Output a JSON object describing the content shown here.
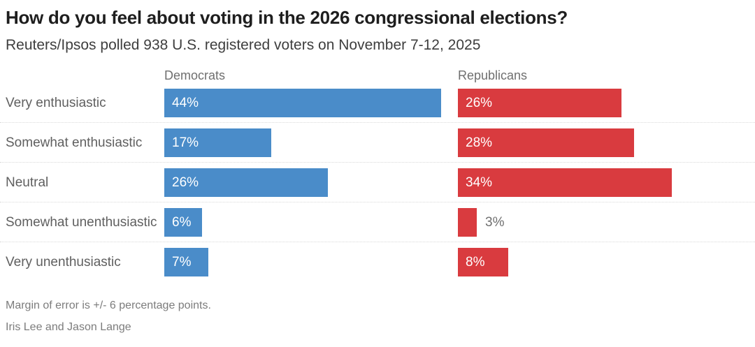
{
  "chart_data": {
    "type": "bar",
    "orientation": "horizontal",
    "title": "How do you feel about voting in the 2026 congressional elections?",
    "subtitle": "Reuters/Ipsos polled 938 U.S. registered voters on November 7-12, 2025",
    "categories": [
      "Very enthusiastic",
      "Somewhat enthusiastic",
      "Neutral",
      "Somewhat unenthusiastic",
      "Very unenthusiastic"
    ],
    "series": [
      {
        "name": "Democrats",
        "color": "#4a8cc9",
        "values": [
          44,
          17,
          26,
          6,
          7
        ],
        "labels": [
          "44%",
          "17%",
          "26%",
          "6%",
          "7%"
        ]
      },
      {
        "name": "Republicans",
        "color": "#d93b3f",
        "values": [
          26,
          28,
          34,
          3,
          8
        ],
        "labels": [
          "26%",
          "28%",
          "34%",
          "3%",
          "8%"
        ]
      }
    ],
    "unit": "%",
    "xlim": [
      0,
      46
    ],
    "grid": false,
    "legend_position": "column-headers",
    "value_labels": "inside-bar-white (outside gray when bar too small)"
  },
  "footer": {
    "note": "Margin of error is +/- 6 percentage points.",
    "byline": "Iris Lee and Jason Lange"
  }
}
